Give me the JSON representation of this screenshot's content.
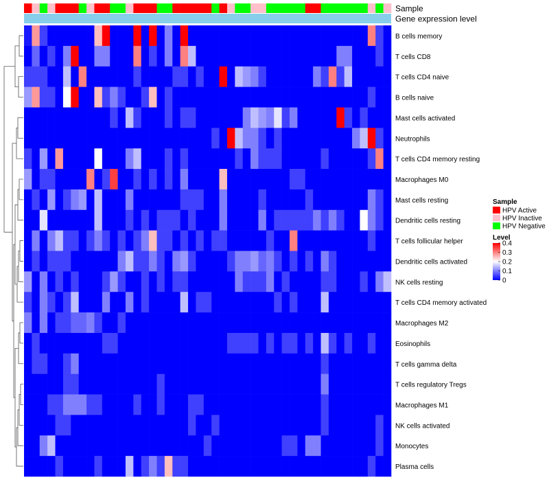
{
  "chart_data": {
    "type": "heatmap",
    "title": "",
    "annotation_tracks": [
      "Sample",
      "Gene expression level"
    ],
    "gene_expression_color": "#87ceeb",
    "sample_groups": [
      "HPV Active",
      "HPV Inactive",
      "HPV Negative",
      "HPV Inactive",
      "HPV Active",
      "HPV Active",
      "HPV Active",
      "HPV Negative",
      "HPV Inactive",
      "HPV Active",
      "HPV Active",
      "HPV Negative",
      "HPV Negative",
      "HPV Inactive",
      "HPV Active",
      "HPV Active",
      "HPV Active",
      "HPV Negative",
      "HPV Negative",
      "HPV Active",
      "HPV Active",
      "HPV Active",
      "HPV Active",
      "HPV Active",
      "HPV Negative",
      "HPV Active",
      "HPV Inactive",
      "HPV Negative",
      "HPV Negative",
      "HPV Inactive",
      "HPV Inactive",
      "HPV Negative",
      "HPV Negative",
      "HPV Negative",
      "HPV Negative",
      "HPV Negative",
      "HPV Active",
      "HPV Active",
      "HPV Negative",
      "HPV Negative",
      "HPV Negative",
      "HPV Negative",
      "HPV Negative",
      "HPV Negative",
      "HPV Inactive",
      "HPV Negative",
      "HPV Inactive"
    ],
    "rows": [
      "B cells memory",
      "T cells CD8",
      "T cells CD4 naive",
      "B cells naive",
      "Mast cells activated",
      "Neutrophils",
      "T cells CD4 memory resting",
      "Macrophages M0",
      "Mast cells resting",
      "Dendritic cells resting",
      "T cells follicular helper",
      "Dendritic cells activated",
      "NK cells resting",
      "T cells CD4 memory activated",
      "Macrophages M2",
      "Eosinophils",
      "T cells gamma delta",
      "T cells regulatory  Tregs",
      "Macrophages M1",
      "NK cells activated",
      "Monocytes",
      "Plasma cells"
    ],
    "values": [
      [
        0.02,
        0.28,
        0.05,
        0.0,
        0.0,
        0.0,
        0.0,
        0.0,
        0.0,
        0.25,
        0.4,
        0.0,
        0.0,
        0.0,
        0.4,
        0.0,
        0.4,
        0.0,
        0.1,
        0.0,
        0.4,
        0.0,
        0.0,
        0.0,
        0.0,
        0.0,
        0.0,
        0.0,
        0.0,
        0.0,
        0.0,
        0.0,
        0.0,
        0.0,
        0.0,
        0.0,
        0.0,
        0.0,
        0.0,
        0.0,
        0.0,
        0.0,
        0.0,
        0.0,
        0.3,
        0.05,
        0.0
      ],
      [
        0.0,
        0.08,
        0.0,
        0.05,
        0.0,
        0.1,
        0.4,
        0.0,
        0.0,
        0.1,
        0.1,
        0.0,
        0.0,
        0.0,
        0.3,
        0.0,
        0.05,
        0.0,
        0.1,
        0.0,
        0.3,
        0.15,
        0.0,
        0.0,
        0.0,
        0.0,
        0.0,
        0.0,
        0.0,
        0.0,
        0.0,
        0.0,
        0.0,
        0.0,
        0.0,
        0.0,
        0.0,
        0.0,
        0.0,
        0.0,
        0.1,
        0.1,
        0.0,
        0.0,
        0.0,
        0.05,
        0.0
      ],
      [
        0.05,
        0.05,
        0.05,
        0.0,
        0.0,
        0.15,
        0.0,
        0.3,
        0.0,
        0.0,
        0.0,
        0.0,
        0.0,
        0.0,
        0.05,
        0.0,
        0.0,
        0.0,
        0.0,
        0.05,
        0.05,
        0.0,
        0.05,
        0.0,
        0.0,
        0.4,
        0.0,
        0.15,
        0.12,
        0.1,
        0.05,
        0.0,
        0.0,
        0.0,
        0.0,
        0.0,
        0.0,
        0.1,
        0.05,
        0.3,
        0.05,
        0.15,
        0.0,
        0.0,
        0.0,
        0.0,
        0.0
      ],
      [
        0.12,
        0.28,
        0.05,
        0.05,
        0.0,
        0.2,
        0.4,
        0.0,
        0.0,
        0.25,
        0.05,
        0.1,
        0.05,
        0.0,
        0.0,
        0.05,
        0.25,
        0.0,
        0.05,
        0.0,
        0.0,
        0.0,
        0.0,
        0.0,
        0.0,
        0.0,
        0.0,
        0.0,
        0.0,
        0.0,
        0.0,
        0.0,
        0.0,
        0.0,
        0.0,
        0.0,
        0.0,
        0.0,
        0.0,
        0.0,
        0.0,
        0.0,
        0.0,
        0.0,
        0.05,
        0.0,
        0.0
      ],
      [
        0.0,
        0.0,
        0.0,
        0.0,
        0.0,
        0.0,
        0.0,
        0.0,
        0.0,
        0.0,
        0.0,
        0.05,
        0.0,
        0.15,
        0.05,
        0.0,
        0.0,
        0.0,
        0.05,
        0.0,
        0.05,
        0.05,
        0.0,
        0.0,
        0.0,
        0.0,
        0.0,
        0.0,
        0.1,
        0.15,
        0.12,
        0.1,
        0.18,
        0.05,
        0.1,
        0.0,
        0.0,
        0.0,
        0.0,
        0.0,
        0.4,
        0.05,
        0.0,
        0.05,
        0.0,
        0.0,
        0.0
      ],
      [
        0.0,
        0.0,
        0.0,
        0.0,
        0.0,
        0.0,
        0.0,
        0.0,
        0.0,
        0.0,
        0.0,
        0.0,
        0.0,
        0.0,
        0.0,
        0.0,
        0.0,
        0.0,
        0.0,
        0.0,
        0.0,
        0.0,
        0.0,
        0.0,
        0.05,
        0.0,
        0.4,
        0.15,
        0.1,
        0.1,
        0.05,
        0.0,
        0.05,
        0.0,
        0.0,
        0.0,
        0.0,
        0.0,
        0.0,
        0.0,
        0.0,
        0.0,
        0.1,
        0.15,
        0.4,
        0.05,
        0.0
      ],
      [
        0.05,
        0.0,
        0.12,
        0.0,
        0.28,
        0.0,
        0.0,
        0.0,
        0.0,
        0.2,
        0.0,
        0.0,
        0.0,
        0.1,
        0.15,
        0.0,
        0.0,
        0.0,
        0.05,
        0.0,
        0.05,
        0.0,
        0.0,
        0.0,
        0.0,
        0.0,
        0.0,
        0.05,
        0.0,
        0.1,
        0.05,
        0.05,
        0.05,
        0.0,
        0.0,
        0.0,
        0.0,
        0.0,
        0.05,
        0.0,
        0.0,
        0.0,
        0.0,
        0.0,
        0.05,
        0.3,
        0.0
      ],
      [
        0.12,
        0.0,
        0.05,
        0.05,
        0.0,
        0.0,
        0.0,
        0.0,
        0.3,
        0.0,
        0.05,
        0.35,
        0.0,
        0.0,
        0.05,
        0.0,
        0.05,
        0.0,
        0.05,
        0.0,
        0.1,
        0.0,
        0.0,
        0.0,
        0.0,
        0.25,
        0.0,
        0.0,
        0.0,
        0.0,
        0.0,
        0.0,
        0.0,
        0.0,
        0.05,
        0.05,
        0.0,
        0.0,
        0.0,
        0.0,
        0.0,
        0.0,
        0.0,
        0.0,
        0.0,
        0.0,
        0.0
      ],
      [
        0.0,
        0.05,
        0.0,
        0.12,
        0.0,
        0.05,
        0.1,
        0.12,
        0.0,
        0.15,
        0.0,
        0.0,
        0.0,
        0.1,
        0.0,
        0.0,
        0.0,
        0.0,
        0.0,
        0.0,
        0.05,
        0.05,
        0.05,
        0.0,
        0.0,
        0.1,
        0.0,
        0.0,
        0.0,
        0.0,
        0.05,
        0.0,
        0.0,
        0.0,
        0.0,
        0.0,
        0.05,
        0.0,
        0.0,
        0.0,
        0.0,
        0.0,
        0.0,
        0.0,
        0.1,
        0.05,
        0.0
      ],
      [
        0.0,
        0.0,
        0.18,
        0.0,
        0.0,
        0.0,
        0.0,
        0.0,
        0.0,
        0.15,
        0.0,
        0.0,
        0.0,
        0.05,
        0.0,
        0.05,
        0.0,
        0.05,
        0.05,
        0.05,
        0.0,
        0.05,
        0.0,
        0.0,
        0.0,
        0.1,
        0.0,
        0.0,
        0.0,
        0.0,
        0.1,
        0.0,
        0.05,
        0.05,
        0.05,
        0.05,
        0.05,
        0.1,
        0.05,
        0.1,
        0.05,
        0.0,
        0.0,
        0.2,
        0.1,
        0.05,
        0.0
      ],
      [
        0.0,
        0.1,
        0.0,
        0.1,
        0.15,
        0.05,
        0.05,
        0.0,
        0.05,
        0.1,
        0.05,
        0.0,
        0.05,
        0.0,
        0.05,
        0.1,
        0.25,
        0.05,
        0.05,
        0.0,
        0.05,
        0.0,
        0.05,
        0.0,
        0.05,
        0.05,
        0.0,
        0.0,
        0.0,
        0.0,
        0.0,
        0.05,
        0.0,
        0.0,
        0.3,
        0.0,
        0.0,
        0.0,
        0.0,
        0.0,
        0.0,
        0.0,
        0.0,
        0.0,
        0.05,
        0.0,
        0.0
      ],
      [
        0.0,
        0.05,
        0.0,
        0.05,
        0.05,
        0.05,
        0.0,
        0.0,
        0.0,
        0.0,
        0.0,
        0.0,
        0.1,
        0.15,
        0.05,
        0.05,
        0.1,
        0.05,
        0.0,
        0.1,
        0.12,
        0.05,
        0.0,
        0.0,
        0.0,
        0.0,
        0.05,
        0.1,
        0.1,
        0.12,
        0.08,
        0.1,
        0.05,
        0.0,
        0.05,
        0.0,
        0.05,
        0.0,
        0.1,
        0.05,
        0.0,
        0.0,
        0.0,
        0.0,
        0.0,
        0.0,
        0.0
      ],
      [
        0.12,
        0.0,
        0.1,
        0.0,
        0.05,
        0.0,
        0.05,
        0.0,
        0.0,
        0.0,
        0.05,
        0.12,
        0.05,
        0.0,
        0.0,
        0.05,
        0.0,
        0.05,
        0.0,
        0.05,
        0.05,
        0.0,
        0.0,
        0.0,
        0.0,
        0.0,
        0.0,
        0.1,
        0.05,
        0.05,
        0.05,
        0.1,
        0.0,
        0.05,
        0.0,
        0.0,
        0.0,
        0.0,
        0.05,
        0.05,
        0.0,
        0.0,
        0.0,
        0.05,
        0.0,
        0.1,
        0.15
      ],
      [
        0.05,
        0.0,
        0.1,
        0.05,
        0.0,
        0.05,
        0.15,
        0.0,
        0.0,
        0.0,
        0.1,
        0.0,
        0.0,
        0.1,
        0.0,
        0.05,
        0.0,
        0.0,
        0.0,
        0.0,
        0.15,
        0.0,
        0.05,
        0.05,
        0.0,
        0.0,
        0.0,
        0.0,
        0.0,
        0.0,
        0.0,
        0.0,
        0.05,
        0.0,
        0.05,
        0.0,
        0.0,
        0.0,
        0.15,
        0.0,
        0.0,
        0.0,
        0.0,
        0.0,
        0.0,
        0.0,
        0.0
      ],
      [
        0.1,
        0.0,
        0.1,
        0.0,
        0.05,
        0.05,
        0.08,
        0.08,
        0.1,
        0.05,
        0.0,
        0.0,
        0.05,
        0.0,
        0.0,
        0.0,
        0.0,
        0.0,
        0.0,
        0.0,
        0.0,
        0.0,
        0.0,
        0.0,
        0.0,
        0.0,
        0.0,
        0.0,
        0.0,
        0.0,
        0.0,
        0.0,
        0.0,
        0.0,
        0.0,
        0.0,
        0.0,
        0.0,
        0.0,
        0.0,
        0.0,
        0.0,
        0.0,
        0.0,
        0.0,
        0.0,
        0.0
      ],
      [
        0.0,
        0.05,
        0.0,
        0.0,
        0.0,
        0.0,
        0.0,
        0.0,
        0.0,
        0.0,
        0.05,
        0.05,
        0.0,
        0.0,
        0.0,
        0.0,
        0.0,
        0.0,
        0.0,
        0.0,
        0.0,
        0.0,
        0.0,
        0.0,
        0.0,
        0.0,
        0.05,
        0.05,
        0.05,
        0.05,
        0.0,
        0.05,
        0.0,
        0.05,
        0.05,
        0.0,
        0.05,
        0.0,
        0.15,
        0.05,
        0.0,
        0.05,
        0.0,
        0.0,
        0.05,
        0.0,
        0.0
      ],
      [
        0.0,
        0.05,
        0.05,
        0.0,
        0.0,
        0.05,
        0.1,
        0.0,
        0.0,
        0.0,
        0.0,
        0.0,
        0.0,
        0.0,
        0.0,
        0.0,
        0.0,
        0.0,
        0.0,
        0.0,
        0.0,
        0.0,
        0.0,
        0.0,
        0.0,
        0.0,
        0.0,
        0.0,
        0.0,
        0.0,
        0.0,
        0.0,
        0.0,
        0.0,
        0.0,
        0.0,
        0.0,
        0.0,
        0.05,
        0.0,
        0.0,
        0.0,
        0.0,
        0.0,
        0.0,
        0.0,
        0.0
      ],
      [
        0.0,
        0.0,
        0.0,
        0.0,
        0.0,
        0.05,
        0.05,
        0.0,
        0.0,
        0.0,
        0.0,
        0.0,
        0.0,
        0.0,
        0.0,
        0.0,
        0.0,
        0.05,
        0.0,
        0.0,
        0.0,
        0.0,
        0.0,
        0.0,
        0.0,
        0.0,
        0.0,
        0.0,
        0.0,
        0.0,
        0.0,
        0.0,
        0.0,
        0.0,
        0.0,
        0.0,
        0.0,
        0.0,
        0.1,
        0.0,
        0.0,
        0.0,
        0.0,
        0.0,
        0.0,
        0.0,
        0.0
      ],
      [
        0.0,
        0.0,
        0.0,
        0.05,
        0.05,
        0.1,
        0.1,
        0.1,
        0.05,
        0.05,
        0.0,
        0.0,
        0.0,
        0.0,
        0.05,
        0.0,
        0.0,
        0.05,
        0.0,
        0.0,
        0.0,
        0.05,
        0.05,
        0.0,
        0.0,
        0.0,
        0.0,
        0.0,
        0.0,
        0.0,
        0.0,
        0.0,
        0.0,
        0.0,
        0.0,
        0.0,
        0.0,
        0.0,
        0.05,
        0.0,
        0.0,
        0.0,
        0.0,
        0.0,
        0.0,
        0.0,
        0.0
      ],
      [
        0.0,
        0.0,
        0.0,
        0.0,
        0.05,
        0.05,
        0.0,
        0.0,
        0.0,
        0.0,
        0.0,
        0.0,
        0.0,
        0.0,
        0.0,
        0.0,
        0.0,
        0.0,
        0.0,
        0.0,
        0.0,
        0.05,
        0.0,
        0.0,
        0.05,
        0.0,
        0.0,
        0.0,
        0.0,
        0.0,
        0.0,
        0.0,
        0.0,
        0.0,
        0.0,
        0.0,
        0.0,
        0.0,
        0.05,
        0.0,
        0.0,
        0.0,
        0.0,
        0.0,
        0.0,
        0.05,
        0.0
      ],
      [
        0.0,
        0.0,
        0.1,
        0.15,
        0.0,
        0.0,
        0.0,
        0.0,
        0.0,
        0.0,
        0.0,
        0.0,
        0.0,
        0.0,
        0.0,
        0.0,
        0.0,
        0.0,
        0.0,
        0.0,
        0.0,
        0.0,
        0.0,
        0.05,
        0.0,
        0.0,
        0.0,
        0.0,
        0.0,
        0.0,
        0.0,
        0.0,
        0.0,
        0.05,
        0.05,
        0.0,
        0.1,
        0.1,
        0.0,
        0.0,
        0.0,
        0.0,
        0.0,
        0.0,
        0.0,
        0.05,
        0.0
      ],
      [
        0.0,
        0.0,
        0.0,
        0.0,
        0.05,
        0.0,
        0.0,
        0.0,
        0.0,
        0.05,
        0.0,
        0.0,
        0.0,
        0.15,
        0.0,
        0.05,
        0.1,
        0.05,
        0.25,
        0.05,
        0.05,
        0.0,
        0.0,
        0.0,
        0.0,
        0.0,
        0.0,
        0.0,
        0.0,
        0.0,
        0.0,
        0.0,
        0.0,
        0.0,
        0.0,
        0.0,
        0.0,
        0.0,
        0.0,
        0.0,
        0.0,
        0.0,
        0.0,
        0.0,
        0.05,
        0.0,
        0.0
      ]
    ],
    "color_scale": {
      "low": "#0000ff",
      "mid": "#ffffff",
      "high": "#ff0000",
      "midpoint": 0.2,
      "range": [
        0,
        0.4
      ]
    },
    "legend": {
      "position": "right",
      "sample_title": "Sample",
      "sample_items": [
        {
          "label": "HPV Active",
          "color": "#ff0000"
        },
        {
          "label": "HPV Inactive",
          "color": "#ffc0cb"
        },
        {
          "label": "HPV Negative",
          "color": "#00ff00"
        }
      ],
      "level_title": "Level",
      "level_ticks": [
        "0.4",
        "0.3",
        "0.2",
        "0.1",
        "0"
      ]
    }
  }
}
